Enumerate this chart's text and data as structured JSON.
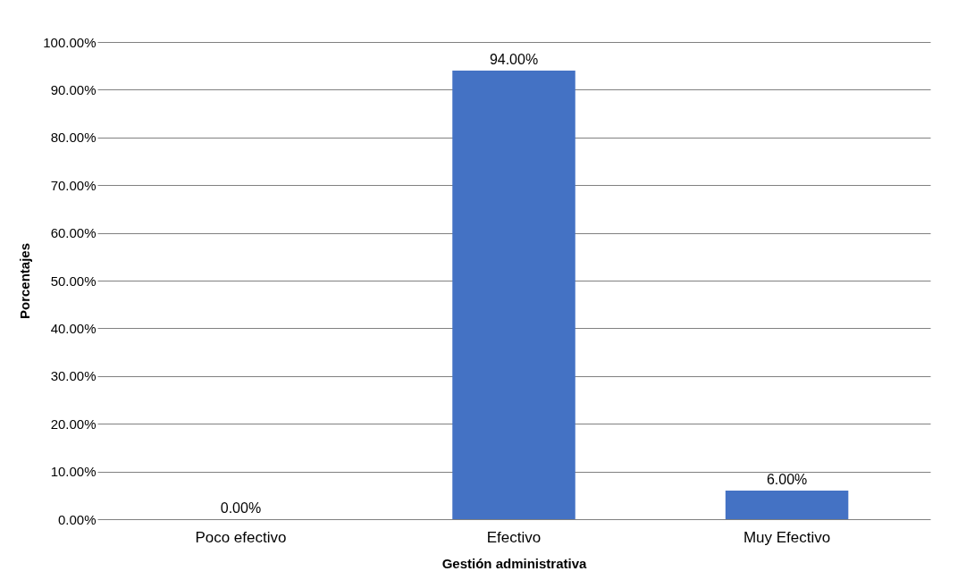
{
  "chart_data": {
    "type": "bar",
    "xlabel": "Gestión administrativa",
    "ylabel": "Porcentajes",
    "categories": [
      "Poco efectivo",
      "Efectivo",
      "Muy Efectivo"
    ],
    "values": [
      0,
      94,
      6
    ],
    "value_labels": [
      "0.00%",
      "94.00%",
      "6.00%"
    ],
    "color": "#4472c4",
    "ylim": [
      0,
      100
    ],
    "yticks": [
      {
        "value": 0,
        "label": "0.00%"
      },
      {
        "value": 10,
        "label": "10.00%"
      },
      {
        "value": 20,
        "label": "20.00%"
      },
      {
        "value": 30,
        "label": "30.00%"
      },
      {
        "value": 40,
        "label": "40.00%"
      },
      {
        "value": 50,
        "label": "50.00%"
      },
      {
        "value": 60,
        "label": "60.00%"
      },
      {
        "value": 70,
        "label": "70.00%"
      },
      {
        "value": 80,
        "label": "80.00%"
      },
      {
        "value": 90,
        "label": "90.00%"
      },
      {
        "value": 100,
        "label": "100.00%"
      }
    ],
    "grid": "y"
  }
}
